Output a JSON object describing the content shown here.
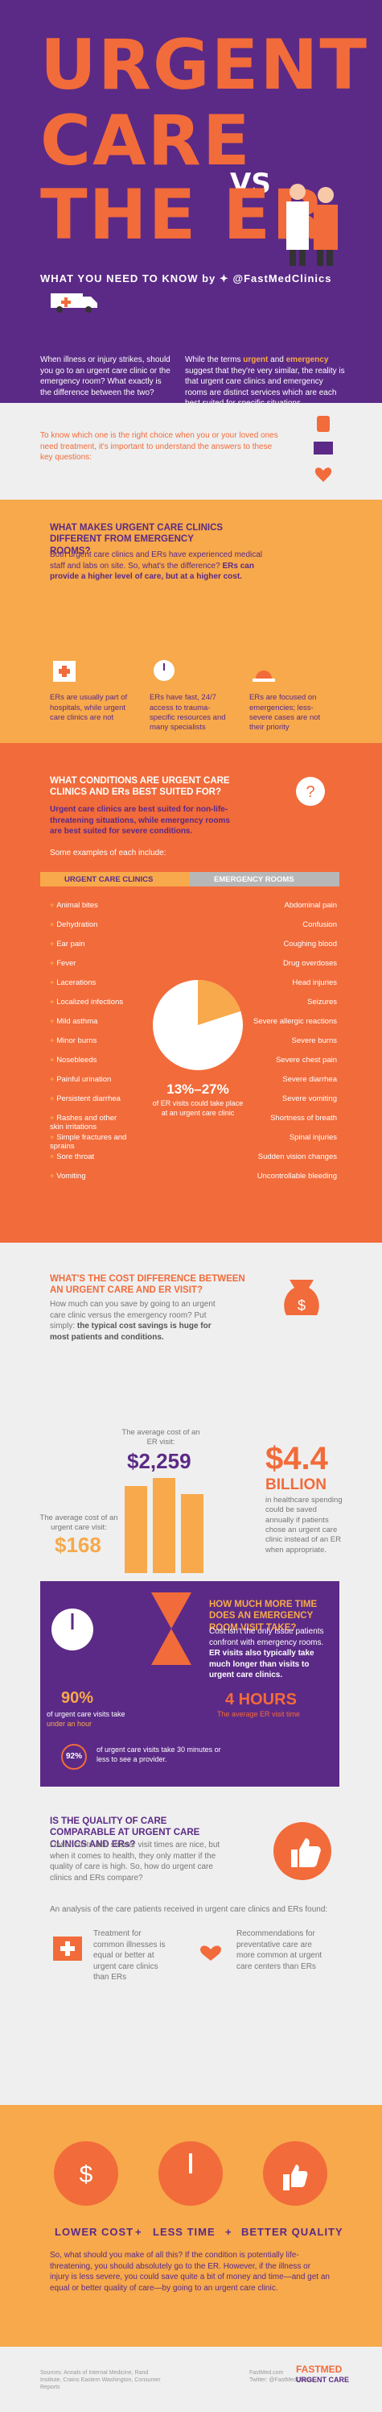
{
  "hero": {
    "word1": "URGENT",
    "word2": "CARE",
    "vs": "VS",
    "word3": "THE ER",
    "subtitle": "WHAT YOU NEED TO KNOW by",
    "handle": "@FastMedClinics",
    "left_text": "When illness or injury strikes, should you go to an urgent care clinic or the emergency room? What exactly is the difference between the two?",
    "right_text_1": "While the terms",
    "right_hl_1": "urgent",
    "right_text_2": "and",
    "right_hl_2": "emergency",
    "right_text_3": "suggest that they're very similar, the reality is that urgent care clinics and emergency rooms are distinct services which are each best suited for specific situations.",
    "colors": {
      "purple": "#5b2a86",
      "orange": "#f26b3a",
      "gold": "#f7a94b"
    }
  },
  "intro": {
    "text": "To know which one is the right choice when you or your loved ones need treatment, it's important to understand the answers to these key questions:"
  },
  "q1": {
    "question": "WHAT MAKES URGENT CARE CLINICS DIFFERENT FROM EMERGENCY ROOMS?",
    "body": "Both urgent care clinics and ERs have experienced medical staff and labs on site. So, what's the difference?",
    "body_bold": "ERs can provide a higher level of care, but at a higher cost.",
    "points": [
      {
        "icon": "hospital-icon",
        "text": "ERs are usually part of hospitals, while urgent care clinics are not"
      },
      {
        "icon": "stopwatch-icon",
        "text": "ERs have fast, 24/7 access to trauma-specific resources and many specialists"
      },
      {
        "icon": "siren-icon",
        "text": "ERs are focused on emergencies; less-severe cases are not their priority"
      }
    ]
  },
  "q2": {
    "question": "WHAT CONDITIONS ARE URGENT CARE CLINICS AND ERs BEST SUITED FOR?",
    "body_bold": "Urgent care clinics are best suited for non-life-threatening situations, while emergency rooms are best suited for severe conditions.",
    "body": "Some examples of each include:",
    "urgent_label": "URGENT CARE CLINICS",
    "er_label": "EMERGENCY ROOMS",
    "urgent_items": [
      "Animal bites",
      "Dehydration",
      "Ear pain",
      "Fever",
      "Lacerations",
      "Localized infections",
      "Mild asthma",
      "Minor burns",
      "Nosebleeds",
      "Painful urination",
      "Persistent diarrhea",
      "Rashes and other skin irritations",
      "Simple fractures and sprains",
      "Sore throat",
      "Vomiting"
    ],
    "er_items": [
      "Abdominal pain",
      "Confusion",
      "Coughing blood",
      "Drug overdoses",
      "Head injuries",
      "Seizures",
      "Severe allergic reactions",
      "Severe burns",
      "Severe chest pain",
      "Severe diarrhea",
      "Severe vomiting",
      "Shortness of breath",
      "Spinal injuries",
      "Sudden vision changes",
      "Uncontrollable bleeding"
    ],
    "pct": "13%–27%",
    "pct_sub": "of ER visits could take place at an urgent care clinic",
    "pie_share": 0.2
  },
  "q3": {
    "question": "WHAT'S THE COST DIFFERENCE BETWEEN AN URGENT CARE AND ER VISIT?",
    "body": "How much can you save by going to an urgent care clinic versus the emergency room? Put simply:",
    "body_bold": "the typical cost savings is huge for most patients and conditions.",
    "er_cost_label": "The average cost of an ER visit:",
    "er_cost": "$2,259",
    "uc_cost_label": "The average cost of an urgent care visit:",
    "uc_cost": "$168",
    "savings": "$4.4",
    "savings_unit": "BILLION",
    "savings_text": "in healthcare spending could be saved annually if patients chose an urgent care clinic instead of an ER when appropriate.",
    "time_question": "HOW MUCH MORE TIME DOES AN EMERGENCY ROOM VISIT TAKE?",
    "time_body": "Cost isn't the only issue patients confront with emergency rooms.",
    "time_body_bold": "ER visits also typically take much longer than visits to urgent care clinics.",
    "stat90": "90%",
    "stat90_text": "of urgent care visits take",
    "stat90_hl": "under an hour",
    "hours": "4 HOURS",
    "hours_text": "The average ER visit time",
    "stat92": "92%",
    "stat92_text": "of urgent care visits take 30 minutes or less to see a provider."
  },
  "q4": {
    "question": "IS THE QUALITY OF CARE COMPARABLE AT URGENT CARE CLINICS AND ERs?",
    "body": "Lower costs and shorter visit times are nice, but when it comes to health, they only matter if the quality of care is high. So, how do urgent care clinics and ERs compare?",
    "body2": "An analysis of the care patients received in urgent care clinics and ERs found:",
    "find1": "Treatment for common illnesses is equal or better at urgent care clinics than ERs",
    "find2": "Recommendations for preventative care are more common at urgent care centers than ERs"
  },
  "q5": {
    "tag1": "LOWER COST",
    "tag2": "LESS TIME",
    "tag3": "BETTER QUALITY",
    "plus": "+",
    "end": "So, what should you make of all this? If the condition is potentially life-threatening, you should absolutely go to the ER. However, if the illness or injury is less severe, you could save quite a bit of money and time—and get an equal or better quality of care—by going to an urgent care clinic."
  },
  "footer": {
    "sources": "Sources: Annals of Internal Medicine, Rand Institute, Crains Eastern Washington, Consumer Reports",
    "url": "FastMed.com",
    "twitter": "Twitter: @FastMedClinics",
    "logo": "FASTMED",
    "logo_sub": "URGENT CARE"
  }
}
